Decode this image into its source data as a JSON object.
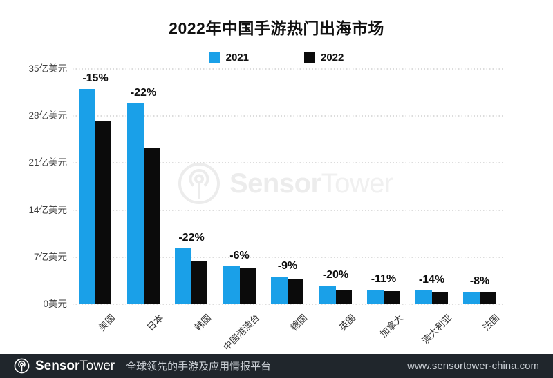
{
  "title": "2022年中国手游热门出海市场",
  "legend": [
    {
      "label": "2021",
      "color": "#1AA0E8"
    },
    {
      "label": "2022",
      "color": "#0B0B0B"
    }
  ],
  "chart_data": {
    "type": "bar",
    "title": "2022年中国手游热门出海市场",
    "categories": [
      "美国",
      "日本",
      "韩国",
      "中国港澳台",
      "德国",
      "英国",
      "加拿大",
      "澳大利亚",
      "法国"
    ],
    "series": [
      {
        "name": "2021",
        "color": "#1AA0E8",
        "values": [
          32.0,
          29.9,
          8.3,
          5.65,
          4.1,
          2.75,
          2.2,
          2.05,
          1.85
        ]
      },
      {
        "name": "2022",
        "color": "#0B0B0B",
        "values": [
          27.2,
          23.3,
          6.5,
          5.3,
          3.7,
          2.2,
          1.95,
          1.75,
          1.7
        ]
      }
    ],
    "annotations": [
      "-15%",
      "-22%",
      "-22%",
      "-6%",
      "-9%",
      "-20%",
      "-11%",
      "-14%",
      "-8%"
    ],
    "y_ticks": [
      "35亿美元",
      "28亿美元",
      "21亿美元",
      "14亿美元",
      "7亿美元",
      "0美元"
    ],
    "ylabel": "亿美元",
    "xlabel": "",
    "ylim": [
      0,
      35
    ],
    "grid": "dotted-horizontal",
    "legend_position": "top-center"
  },
  "watermark": {
    "brand_bold": "Sensor",
    "brand_light": "Tower"
  },
  "footer": {
    "brand_bold": "Sensor",
    "brand_light": "Tower",
    "tagline": "全球领先的手游及应用情报平台",
    "url": "www.sensortower-china.com"
  }
}
